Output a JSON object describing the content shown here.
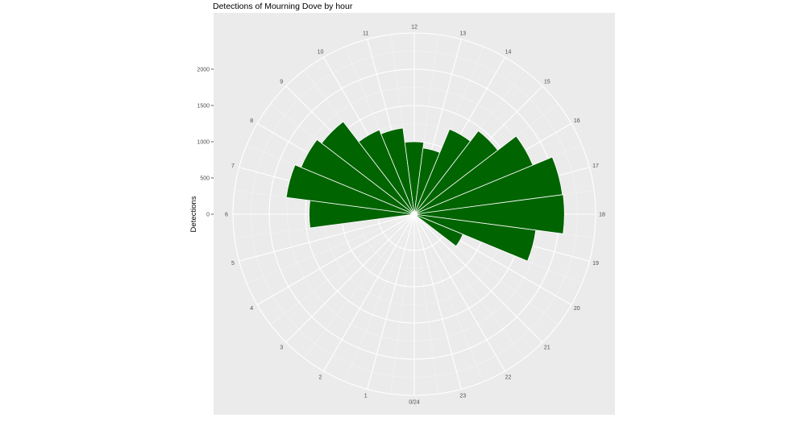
{
  "chart_data": {
    "type": "bar",
    "polar": true,
    "title": "Detections of Mourning Dove by hour",
    "ylabel": "Detections",
    "xlabel": "",
    "categories": [
      "0/24",
      "1",
      "2",
      "3",
      "4",
      "5",
      "6",
      "7",
      "8",
      "9",
      "10",
      "11",
      "12",
      "13",
      "14",
      "15",
      "16",
      "17",
      "18",
      "19",
      "20",
      "21",
      "22",
      "23"
    ],
    "values": [
      0,
      0,
      0,
      0,
      0,
      0,
      1450,
      1780,
      1690,
      1610,
      1260,
      1200,
      1000,
      920,
      1270,
      1450,
      1770,
      2060,
      2070,
      1690,
      725,
      0,
      0,
      0
    ],
    "radial_ticks": [
      0,
      500,
      1000,
      1500,
      2000
    ],
    "radial_tick_labels": [
      "0",
      "500",
      "1000",
      "1500",
      "2000"
    ],
    "rlim": [
      0,
      2500
    ],
    "bar_color": "#006400",
    "panel_background": "#ebebeb",
    "grid": true,
    "legend": "none"
  }
}
